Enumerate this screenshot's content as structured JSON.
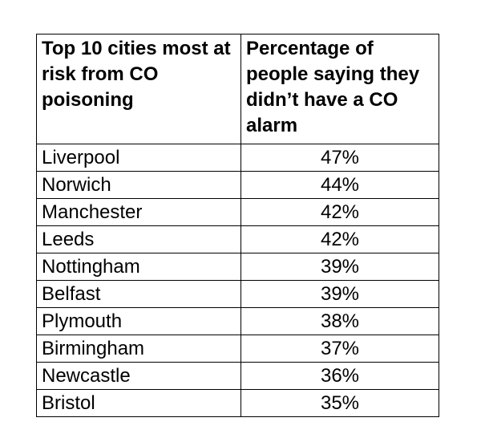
{
  "table": {
    "header": [
      "Top 10 cities most at risk from CO poisoning",
      "Percentage of people saying they didn’t have a CO alarm"
    ],
    "rows": [
      [
        "Liverpool",
        "47%"
      ],
      [
        "Norwich",
        "44%"
      ],
      [
        "Manchester",
        "42%"
      ],
      [
        "Leeds",
        "42%"
      ],
      [
        "Nottingham",
        "39%"
      ],
      [
        "Belfast",
        "39%"
      ],
      [
        "Plymouth",
        "38%"
      ],
      [
        "Birmingham",
        "37%"
      ],
      [
        "Newcastle",
        "36%"
      ],
      [
        "Bristol",
        "35%"
      ]
    ]
  }
}
